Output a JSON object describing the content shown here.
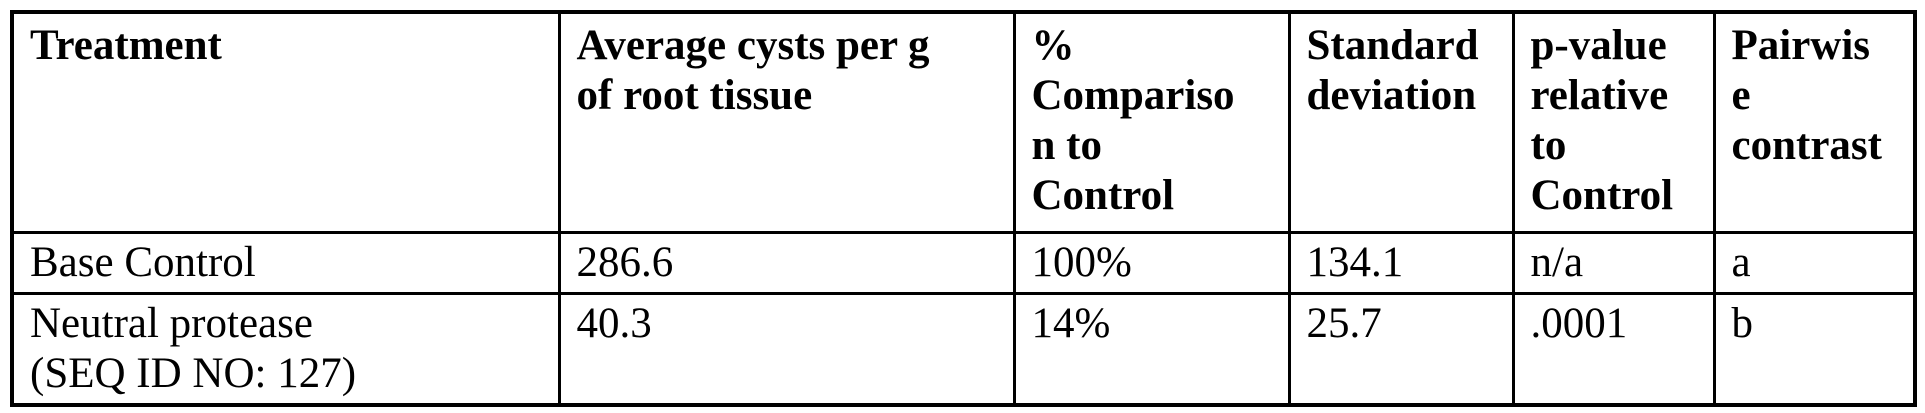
{
  "page": {
    "background_color": "#ffffff",
    "text_color": "#000000",
    "border_color": "#000000"
  },
  "table": {
    "columns": [
      {
        "key": "treatment",
        "label": "Treatment"
      },
      {
        "key": "avg_cysts",
        "label": "Average cysts per g\nof root tissue"
      },
      {
        "key": "pct_comparison",
        "label": "%\nCompariso\nn to\nControl"
      },
      {
        "key": "std_dev",
        "label": "Standard\ndeviation"
      },
      {
        "key": "p_value",
        "label": "p-value\nrelative\nto\nControl"
      },
      {
        "key": "pairwise",
        "label": "Pairwis\ne\ncontrast"
      }
    ],
    "rows": [
      {
        "treatment": "Base Control",
        "avg_cysts": "286.6",
        "pct_comparison": "100%",
        "std_dev": "134.1",
        "p_value": "n/a",
        "pairwise": "a"
      },
      {
        "treatment": "Neutral protease\n(SEQ ID NO: 127)",
        "avg_cysts": "40.3",
        "pct_comparison": "14%",
        "std_dev": "25.7",
        "p_value": ".0001",
        "pairwise": "b"
      }
    ]
  }
}
